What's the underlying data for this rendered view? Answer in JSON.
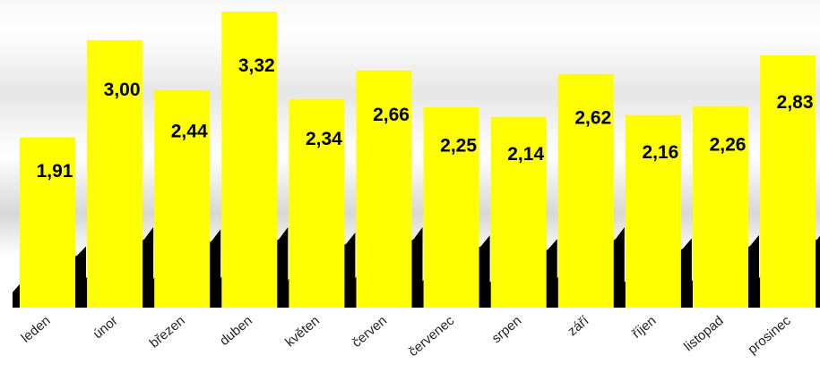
{
  "chart_data": {
    "type": "bar",
    "categories": [
      "leden",
      "únor",
      "březen",
      "duben",
      "květen",
      "červen",
      "červenec",
      "srpen",
      "září",
      "říjen",
      "listopad",
      "prosinec"
    ],
    "values": [
      1.91,
      3.0,
      2.44,
      3.32,
      2.34,
      2.66,
      2.25,
      2.14,
      2.62,
      2.16,
      2.26,
      2.83
    ],
    "value_labels": [
      "1,91",
      "3,00",
      "2,44",
      "3,32",
      "2,34",
      "2,66",
      "2,25",
      "2,14",
      "2,62",
      "2,16",
      "2,26",
      "2,83"
    ],
    "title": "",
    "xlabel": "",
    "ylabel": "",
    "ylim": [
      0,
      3.32
    ],
    "grid": false,
    "legend": "none",
    "colors": {
      "bar": "#ffff00",
      "shadow": "#000000",
      "background": "#ffffff"
    }
  }
}
